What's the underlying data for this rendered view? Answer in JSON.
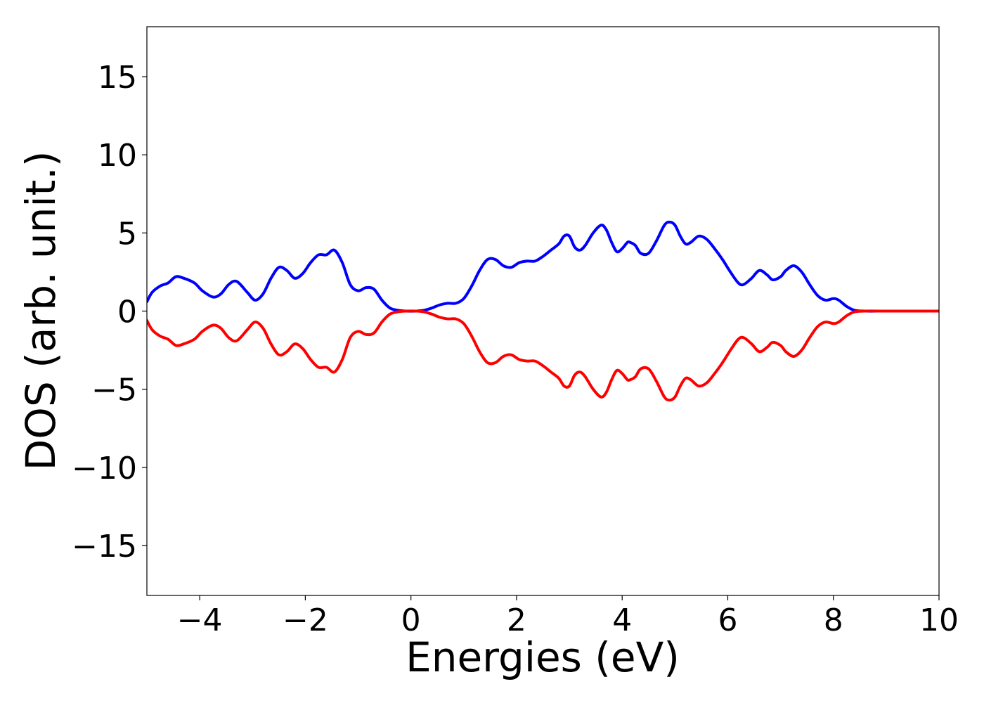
{
  "chart_data": {
    "type": "line",
    "title": "",
    "xlabel": "Energies (eV)",
    "ylabel": "DOS (arb. unit.)",
    "xlim": [
      -5,
      10
    ],
    "ylim": [
      -18.2,
      18.2
    ],
    "grid": false,
    "legend": "none",
    "xticks": [
      -4,
      -2,
      0,
      2,
      4,
      6,
      8,
      10
    ],
    "xtick_labels": [
      "−4",
      "−2",
      "0",
      "2",
      "4",
      "6",
      "8",
      "10"
    ],
    "yticks": [
      15,
      10,
      5,
      0,
      -5,
      -10,
      -15
    ],
    "ytick_labels": [
      "15",
      "10",
      "5",
      "0",
      "−5",
      "−10",
      "−15"
    ],
    "series": [
      {
        "color": "#0000ff",
        "x": [
          -5.0,
          -4.9,
          -4.75,
          -4.6,
          -4.45,
          -4.3,
          -4.1,
          -3.95,
          -3.75,
          -3.6,
          -3.45,
          -3.3,
          -3.1,
          -2.95,
          -2.8,
          -2.65,
          -2.5,
          -2.35,
          -2.2,
          -2.05,
          -1.9,
          -1.75,
          -1.6,
          -1.45,
          -1.3,
          -1.15,
          -1.0,
          -0.85,
          -0.7,
          -0.55,
          -0.4,
          -0.25,
          -0.1,
          0.1,
          0.25,
          0.4,
          0.55,
          0.7,
          0.85,
          1.0,
          1.15,
          1.3,
          1.45,
          1.6,
          1.75,
          1.9,
          2.05,
          2.2,
          2.35,
          2.5,
          2.65,
          2.8,
          2.9,
          3.0,
          3.1,
          3.2,
          3.3,
          3.45,
          3.6,
          3.7,
          3.8,
          3.9,
          4.0,
          4.1,
          4.15,
          4.25,
          4.35,
          4.5,
          4.65,
          4.8,
          4.9,
          5.0,
          5.1,
          5.2,
          5.3,
          5.45,
          5.6,
          5.75,
          5.9,
          6.05,
          6.2,
          6.3,
          6.45,
          6.6,
          6.75,
          6.85,
          7.0,
          7.1,
          7.25,
          7.4,
          7.55,
          7.7,
          7.85,
          8.0,
          8.1,
          8.25,
          8.4,
          8.6,
          9.0,
          9.5,
          10.0
        ],
        "values": [
          0.6,
          1.2,
          1.6,
          1.8,
          2.2,
          2.1,
          1.8,
          1.3,
          0.9,
          1.1,
          1.7,
          1.9,
          1.2,
          0.7,
          1.1,
          2.1,
          2.8,
          2.6,
          2.1,
          2.4,
          3.1,
          3.6,
          3.6,
          3.9,
          3.1,
          1.7,
          1.3,
          1.5,
          1.4,
          0.7,
          0.2,
          0.05,
          0.0,
          0.0,
          0.05,
          0.2,
          0.4,
          0.5,
          0.5,
          0.8,
          1.6,
          2.6,
          3.3,
          3.3,
          2.9,
          2.8,
          3.1,
          3.2,
          3.2,
          3.5,
          3.9,
          4.3,
          4.8,
          4.8,
          4.1,
          3.9,
          4.2,
          5.0,
          5.5,
          5.2,
          4.4,
          3.8,
          4.0,
          4.4,
          4.4,
          4.2,
          3.7,
          3.7,
          4.5,
          5.5,
          5.7,
          5.5,
          4.8,
          4.3,
          4.4,
          4.8,
          4.6,
          4.0,
          3.3,
          2.5,
          1.8,
          1.7,
          2.1,
          2.6,
          2.3,
          2.0,
          2.2,
          2.6,
          2.9,
          2.5,
          1.7,
          1.0,
          0.7,
          0.8,
          0.7,
          0.3,
          0.05,
          0.0,
          0.0,
          0.0,
          0.0
        ]
      },
      {
        "color": "#ff0000",
        "x": [
          -5.0,
          -4.9,
          -4.75,
          -4.6,
          -4.45,
          -4.3,
          -4.1,
          -3.95,
          -3.75,
          -3.6,
          -3.45,
          -3.3,
          -3.1,
          -2.95,
          -2.8,
          -2.65,
          -2.5,
          -2.35,
          -2.2,
          -2.05,
          -1.9,
          -1.75,
          -1.6,
          -1.45,
          -1.3,
          -1.15,
          -1.0,
          -0.85,
          -0.7,
          -0.55,
          -0.4,
          -0.25,
          -0.1,
          0.1,
          0.25,
          0.4,
          0.55,
          0.7,
          0.85,
          1.0,
          1.15,
          1.3,
          1.45,
          1.6,
          1.75,
          1.9,
          2.05,
          2.2,
          2.35,
          2.5,
          2.65,
          2.8,
          2.9,
          3.0,
          3.1,
          3.2,
          3.3,
          3.45,
          3.6,
          3.7,
          3.8,
          3.9,
          4.0,
          4.1,
          4.15,
          4.25,
          4.35,
          4.5,
          4.65,
          4.8,
          4.9,
          5.0,
          5.1,
          5.2,
          5.3,
          5.45,
          5.6,
          5.75,
          5.9,
          6.05,
          6.2,
          6.3,
          6.45,
          6.6,
          6.75,
          6.85,
          7.0,
          7.1,
          7.25,
          7.4,
          7.55,
          7.7,
          7.85,
          8.0,
          8.1,
          8.25,
          8.4,
          8.6,
          9.0,
          9.5,
          10.0
        ],
        "values": [
          -0.6,
          -1.2,
          -1.6,
          -1.8,
          -2.2,
          -2.1,
          -1.8,
          -1.3,
          -0.9,
          -1.1,
          -1.7,
          -1.9,
          -1.2,
          -0.7,
          -1.1,
          -2.1,
          -2.8,
          -2.6,
          -2.1,
          -2.4,
          -3.1,
          -3.6,
          -3.6,
          -3.9,
          -3.1,
          -1.7,
          -1.3,
          -1.5,
          -1.4,
          -0.7,
          -0.2,
          -0.05,
          0.0,
          0.0,
          -0.05,
          -0.2,
          -0.4,
          -0.5,
          -0.5,
          -0.8,
          -1.6,
          -2.6,
          -3.3,
          -3.3,
          -2.9,
          -2.8,
          -3.1,
          -3.2,
          -3.2,
          -3.5,
          -3.9,
          -4.3,
          -4.8,
          -4.8,
          -4.1,
          -3.9,
          -4.2,
          -5.0,
          -5.5,
          -5.2,
          -4.4,
          -3.8,
          -4.0,
          -4.4,
          -4.4,
          -4.2,
          -3.7,
          -3.7,
          -4.5,
          -5.5,
          -5.7,
          -5.5,
          -4.8,
          -4.3,
          -4.4,
          -4.8,
          -4.6,
          -4.0,
          -3.3,
          -2.5,
          -1.8,
          -1.7,
          -2.1,
          -2.6,
          -2.3,
          -2.0,
          -2.2,
          -2.6,
          -2.9,
          -2.5,
          -1.7,
          -1.0,
          -0.7,
          -0.8,
          -0.7,
          -0.3,
          -0.05,
          0.0,
          0.0,
          0.0,
          0.0
        ]
      }
    ]
  }
}
